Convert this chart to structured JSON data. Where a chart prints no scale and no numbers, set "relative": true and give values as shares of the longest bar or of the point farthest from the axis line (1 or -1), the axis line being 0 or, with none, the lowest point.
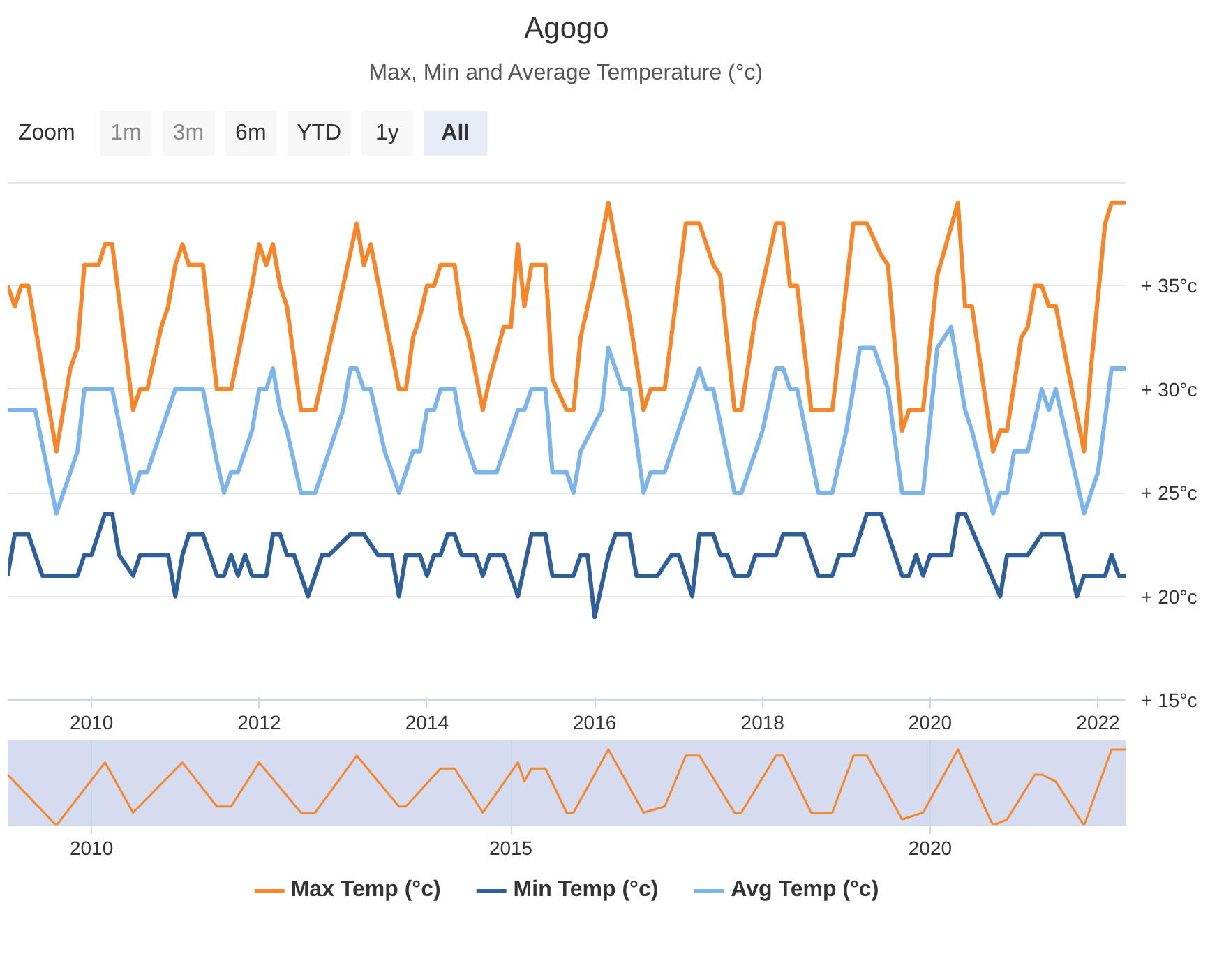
{
  "chart_data": [
    {
      "type": "line",
      "title": "Agogo",
      "subtitle": "Max, Min and Average Temperature (°c)",
      "annotations": [
        "Zoom",
        "1m",
        "3m",
        "6m",
        "YTD",
        "1y",
        "All"
      ],
      "xlim": [
        "2009-01",
        "2022-05"
      ],
      "xticks": [
        "2010",
        "2012",
        "2014",
        "2016",
        "2018",
        "2020",
        "2022"
      ],
      "ylim": [
        15,
        40
      ],
      "yticks": [
        {
          "value": 15,
          "label": "+ 15°c"
        },
        {
          "value": 20,
          "label": "+ 20°c"
        },
        {
          "value": 25,
          "label": "+ 25°c"
        },
        {
          "value": 30,
          "label": "+ 30°c"
        },
        {
          "value": 35,
          "label": "+ 35°c"
        },
        {
          "value": 40,
          "label": null
        }
      ],
      "grid": "y",
      "legend": "bottom",
      "marker": "none",
      "line_style": "solid",
      "series": [
        {
          "name": "Max Temp (°c)",
          "color": "#f7862b",
          "x": [
            "2009-01",
            "2009-02",
            "2009-03",
            "2009-04",
            "2009-08",
            "2009-10",
            "2009-11",
            "2009-12",
            "2010-02",
            "2010-03",
            "2010-04",
            "2010-07",
            "2010-08",
            "2010-09",
            "2010-11",
            "2010-12",
            "2011-01",
            "2011-02",
            "2011-03",
            "2011-05",
            "2011-07",
            "2011-09",
            "2011-12",
            "2012-01",
            "2012-02",
            "2012-03",
            "2012-04",
            "2012-05",
            "2012-07",
            "2012-09",
            "2012-11",
            "2013-01",
            "2013-03",
            "2013-04",
            "2013-05",
            "2013-09",
            "2013-10",
            "2013-11",
            "2013-12",
            "2014-01",
            "2014-02",
            "2014-03",
            "2014-05",
            "2014-06",
            "2014-07",
            "2014-09",
            "2014-10",
            "2014-12",
            "2015-01",
            "2015-02",
            "2015-03",
            "2015-04",
            "2015-06",
            "2015-07",
            "2015-09",
            "2015-10",
            "2015-11",
            "2016-01",
            "2016-03",
            "2016-06",
            "2016-08",
            "2016-09",
            "2016-11",
            "2017-02",
            "2017-04",
            "2017-06",
            "2017-07",
            "2017-09",
            "2017-10",
            "2017-12",
            "2018-03",
            "2018-04",
            "2018-05",
            "2018-06",
            "2018-08",
            "2018-11",
            "2019-02",
            "2019-04",
            "2019-06",
            "2019-07",
            "2019-09",
            "2019-10",
            "2019-12",
            "2020-02",
            "2020-05",
            "2020-06",
            "2020-07",
            "2020-10",
            "2020-11",
            "2020-12",
            "2021-02",
            "2021-03",
            "2021-04",
            "2021-05",
            "2021-06",
            "2021-07",
            "2021-11",
            "2021-12",
            "2022-02",
            "2022-03",
            "2022-05"
          ],
          "values": [
            35,
            34,
            35,
            35,
            27,
            31,
            32,
            36,
            36,
            37,
            37,
            29,
            30,
            30,
            33,
            34,
            36,
            37,
            36,
            36,
            30,
            30,
            35,
            37,
            36,
            37,
            35,
            34,
            29,
            29,
            32,
            35,
            38,
            36,
            37,
            30,
            30,
            32.5,
            33.5,
            35,
            35,
            36,
            36,
            33.5,
            32.5,
            29,
            30.5,
            33,
            33,
            37,
            34,
            36,
            36,
            30.5,
            29,
            29,
            32.5,
            35.5,
            39,
            33.5,
            29,
            30,
            30,
            38,
            38,
            36,
            35.5,
            29,
            29,
            33.5,
            38,
            38,
            35,
            35,
            29,
            29,
            38,
            38,
            36.5,
            36,
            28,
            29,
            29,
            35.5,
            39,
            34,
            34,
            27,
            28,
            28,
            32.5,
            33,
            35,
            35,
            34,
            34,
            27,
            31,
            38,
            39,
            39
          ]
        },
        {
          "name": "Min Temp (°c)",
          "color": "#2f5f98",
          "x": [
            "2009-01",
            "2009-02",
            "2009-04",
            "2009-06",
            "2009-11",
            "2009-12",
            "2010-01",
            "2010-03",
            "2010-04",
            "2010-05",
            "2010-07",
            "2010-08",
            "2010-12",
            "2011-01",
            "2011-02",
            "2011-03",
            "2011-05",
            "2011-06",
            "2011-07",
            "2011-08",
            "2011-09",
            "2011-10",
            "2011-11",
            "2011-12",
            "2012-02",
            "2012-03",
            "2012-04",
            "2012-05",
            "2012-06",
            "2012-08",
            "2012-10",
            "2012-11",
            "2013-02",
            "2013-04",
            "2013-06",
            "2013-08",
            "2013-09",
            "2013-10",
            "2013-12",
            "2014-01",
            "2014-02",
            "2014-03",
            "2014-04",
            "2014-05",
            "2014-06",
            "2014-08",
            "2014-09",
            "2014-10",
            "2014-12",
            "2015-02",
            "2015-04",
            "2015-06",
            "2015-07",
            "2015-10",
            "2015-11",
            "2015-12",
            "2016-01",
            "2016-03",
            "2016-04",
            "2016-06",
            "2016-07",
            "2016-10",
            "2016-12",
            "2017-01",
            "2017-03",
            "2017-04",
            "2017-06",
            "2017-07",
            "2017-08",
            "2017-09",
            "2017-11",
            "2017-12",
            "2018-03",
            "2018-04",
            "2018-07",
            "2018-09",
            "2018-11",
            "2018-12",
            "2019-02",
            "2019-04",
            "2019-06",
            "2019-09",
            "2019-10",
            "2019-11",
            "2019-12",
            "2020-01",
            "2020-04",
            "2020-05",
            "2020-06",
            "2020-11",
            "2020-12",
            "2021-03",
            "2021-05",
            "2021-08",
            "2021-10",
            "2021-11",
            "2022-02",
            "2022-03",
            "2022-04",
            "2022-05"
          ],
          "values": [
            21,
            23,
            23,
            21,
            21,
            22,
            22,
            24,
            24,
            22,
            21,
            22,
            22,
            20,
            22,
            23,
            23,
            22,
            21,
            21,
            22,
            21,
            22,
            21,
            21,
            23,
            23,
            22,
            22,
            20,
            22,
            22,
            23,
            23,
            22,
            22,
            20,
            22,
            22,
            21,
            22,
            22,
            23,
            23,
            22,
            22,
            21,
            22,
            22,
            20,
            23,
            23,
            21,
            21,
            22,
            22,
            19,
            22,
            23,
            23,
            21,
            21,
            22,
            22,
            20,
            23,
            23,
            22,
            22,
            21,
            21,
            22,
            22,
            23,
            23,
            21,
            21,
            22,
            22,
            24,
            24,
            21,
            21,
            22,
            21,
            22,
            22,
            24,
            24,
            20,
            22,
            22,
            23,
            23,
            20,
            21,
            21,
            22,
            21,
            21
          ]
        },
        {
          "name": "Avg Temp (°c)",
          "color": "#7cb5ec",
          "x": [
            "2009-01",
            "2009-05",
            "2009-08",
            "2009-11",
            "2009-12",
            "2010-04",
            "2010-07",
            "2010-08",
            "2010-09",
            "2011-01",
            "2011-05",
            "2011-07",
            "2011-08",
            "2011-09",
            "2011-10",
            "2011-12",
            "2012-01",
            "2012-02",
            "2012-03",
            "2012-04",
            "2012-05",
            "2012-07",
            "2012-09",
            "2013-01",
            "2013-02",
            "2013-03",
            "2013-04",
            "2013-05",
            "2013-07",
            "2013-09",
            "2013-11",
            "2013-12",
            "2014-01",
            "2014-02",
            "2014-03",
            "2014-05",
            "2014-06",
            "2014-08",
            "2014-11",
            "2015-02",
            "2015-03",
            "2015-04",
            "2015-06",
            "2015-07",
            "2015-09",
            "2015-10",
            "2015-11",
            "2016-02",
            "2016-03",
            "2016-05",
            "2016-06",
            "2016-08",
            "2016-09",
            "2016-11",
            "2017-04",
            "2017-05",
            "2017-06",
            "2017-09",
            "2017-10",
            "2017-11",
            "2018-01",
            "2018-03",
            "2018-04",
            "2018-05",
            "2018-06",
            "2018-09",
            "2018-11",
            "2019-01",
            "2019-03",
            "2019-05",
            "2019-07",
            "2019-09",
            "2019-12",
            "2020-02",
            "2020-04",
            "2020-06",
            "2020-07",
            "2020-10",
            "2020-11",
            "2020-12",
            "2021-01",
            "2021-03",
            "2021-05",
            "2021-06",
            "2021-07",
            "2021-09",
            "2021-11",
            "2022-01",
            "2022-03",
            "2022-05"
          ],
          "values": [
            29,
            29,
            24,
            27,
            30,
            30,
            25,
            26,
            26,
            30,
            30,
            26.5,
            25,
            26,
            26,
            28,
            30,
            30,
            31,
            29,
            28,
            25,
            25,
            29,
            31,
            31,
            30,
            30,
            27,
            25,
            27,
            27,
            29,
            29,
            30,
            30,
            28,
            26,
            26,
            29,
            29,
            30,
            30,
            26,
            26,
            25,
            27,
            29,
            32,
            30,
            30,
            25,
            26,
            26,
            31,
            30,
            30,
            25,
            25,
            26,
            28,
            31,
            31,
            30,
            30,
            25,
            25,
            28,
            32,
            32,
            30,
            25,
            25,
            32,
            33,
            29,
            28,
            24,
            25,
            25,
            27,
            27,
            30,
            29,
            30,
            27,
            24,
            26,
            31,
            31
          ]
        }
      ]
    },
    {
      "type": "line",
      "relative": true,
      "xlim": [
        "2009-01",
        "2022-05"
      ],
      "xticks": [
        "2010",
        "2015",
        "2020"
      ],
      "grid": "x",
      "legend": false,
      "marker": "none",
      "series": [
        {
          "color": "#f7862b",
          "x": [
            "2009-01",
            "2009-08",
            "2010-03",
            "2010-07",
            "2011-02",
            "2011-07",
            "2011-09",
            "2012-01",
            "2012-07",
            "2012-09",
            "2013-03",
            "2013-09",
            "2013-10",
            "2014-03",
            "2014-05",
            "2014-09",
            "2015-02",
            "2015-03",
            "2015-04",
            "2015-06",
            "2015-09",
            "2015-10",
            "2016-03",
            "2016-08",
            "2016-11",
            "2017-02",
            "2017-04",
            "2017-09",
            "2017-10",
            "2018-03",
            "2018-04",
            "2018-08",
            "2018-11",
            "2019-02",
            "2019-04",
            "2019-09",
            "2019-12",
            "2020-05",
            "2020-10",
            "2020-12",
            "2021-04",
            "2021-05",
            "2021-07",
            "2021-11",
            "2022-03",
            "2022-05"
          ],
          "values": [
            0.67,
            0,
            0.83,
            0.17,
            0.83,
            0.25,
            0.25,
            0.83,
            0.17,
            0.17,
            0.92,
            0.25,
            0.25,
            0.75,
            0.75,
            0.17,
            0.83,
            0.58,
            0.75,
            0.75,
            0.17,
            0.17,
            1,
            0.17,
            0.25,
            0.92,
            0.92,
            0.17,
            0.17,
            0.92,
            0.92,
            0.17,
            0.17,
            0.92,
            0.92,
            0.08,
            0.17,
            1,
            0,
            0.08,
            0.67,
            0.67,
            0.58,
            0,
            1,
            1
          ]
        }
      ]
    }
  ]
}
